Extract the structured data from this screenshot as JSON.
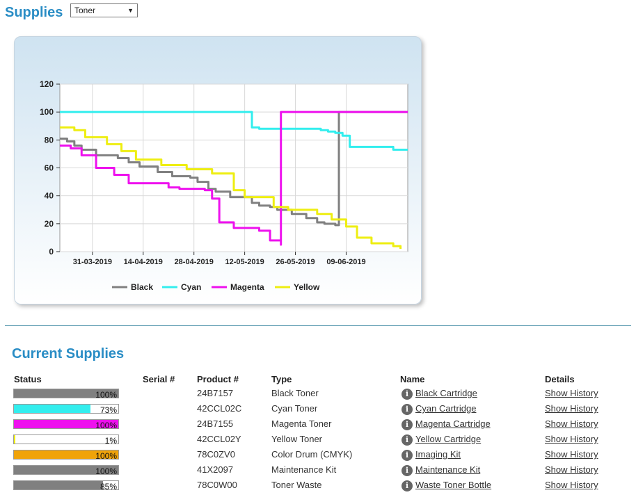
{
  "header": {
    "title": "Supplies",
    "select_value": "Toner"
  },
  "colors": {
    "accent": "#2a8dc5",
    "black": "#808080",
    "cyan": "#33eeee",
    "magenta": "#ee11ee",
    "yellow": "#eeee11",
    "orange": "#f0a30a"
  },
  "chart_data": {
    "type": "line",
    "x_ticks": [
      "31-03-2019",
      "14-04-2019",
      "28-04-2019",
      "12-05-2019",
      "26-05-2019",
      "09-06-2019"
    ],
    "xlim": [
      "2019-03-22",
      "2019-06-26"
    ],
    "ylim": [
      0,
      120
    ],
    "y_ticks": [
      "0",
      "20",
      "40",
      "60",
      "80",
      "100",
      "120"
    ],
    "grid": true,
    "legend_placement": "bottom",
    "series": [
      {
        "name": "Black",
        "color": "#808080",
        "x": [
          "2019-03-22",
          "2019-03-24",
          "2019-03-26",
          "2019-03-28",
          "2019-04-01",
          "2019-04-07",
          "2019-04-10",
          "2019-04-13",
          "2019-04-18",
          "2019-04-22",
          "2019-04-27",
          "2019-04-29",
          "2019-05-02",
          "2019-05-04",
          "2019-05-08",
          "2019-05-11",
          "2019-05-14",
          "2019-05-16",
          "2019-05-19",
          "2019-05-21",
          "2019-05-25",
          "2019-05-29",
          "2019-06-01",
          "2019-06-03",
          "2019-06-06",
          "2019-06-07",
          "2019-06-26"
        ],
        "values": [
          81,
          79,
          76,
          73,
          69,
          67,
          64,
          61,
          57,
          54,
          53,
          50,
          45,
          43,
          39,
          39,
          35,
          33,
          32,
          30,
          27,
          24,
          21,
          20,
          19,
          100,
          100
        ]
      },
      {
        "name": "Cyan",
        "color": "#33eeee",
        "x": [
          "2019-03-22",
          "2019-05-10",
          "2019-05-14",
          "2019-05-16",
          "2019-06-02",
          "2019-06-04",
          "2019-06-06",
          "2019-06-08",
          "2019-06-10",
          "2019-06-22",
          "2019-06-26"
        ],
        "values": [
          100,
          100,
          89,
          88,
          87,
          86,
          85,
          83,
          75,
          73,
          73
        ]
      },
      {
        "name": "Magenta",
        "color": "#ee11ee",
        "x": [
          "2019-03-22",
          "2019-03-25",
          "2019-03-28",
          "2019-04-01",
          "2019-04-06",
          "2019-04-10",
          "2019-04-21",
          "2019-04-24",
          "2019-05-01",
          "2019-05-03",
          "2019-05-05",
          "2019-05-09",
          "2019-05-16",
          "2019-05-19",
          "2019-05-22",
          "2019-05-22",
          "2019-06-26"
        ],
        "values": [
          76,
          74,
          69,
          60,
          55,
          49,
          46,
          45,
          44,
          38,
          21,
          17,
          15,
          8,
          5,
          100,
          100
        ]
      },
      {
        "name": "Yellow",
        "color": "#eeee11",
        "x": [
          "2019-03-22",
          "2019-03-26",
          "2019-03-29",
          "2019-04-04",
          "2019-04-08",
          "2019-04-12",
          "2019-04-19",
          "2019-04-26",
          "2019-05-03",
          "2019-05-09",
          "2019-05-12",
          "2019-05-20",
          "2019-05-24",
          "2019-06-01",
          "2019-06-05",
          "2019-06-09",
          "2019-06-12",
          "2019-06-16",
          "2019-06-22",
          "2019-06-24"
        ],
        "values": [
          89,
          87,
          82,
          77,
          72,
          66,
          62,
          59,
          56,
          44,
          39,
          32,
          30,
          27,
          23,
          18,
          10,
          6,
          4,
          2
        ]
      }
    ]
  },
  "current": {
    "title": "Current Supplies",
    "headers": {
      "status": "Status",
      "serial": "Serial #",
      "product": "Product #",
      "type": "Type",
      "name": "Name",
      "details": "Details"
    },
    "rows": [
      {
        "pct": "100%",
        "level": 1.0,
        "color": "#808080",
        "product": "24B7157",
        "type": "Black Toner",
        "name": "Black Cartridge",
        "details": "Show History"
      },
      {
        "pct": "73%",
        "level": 0.73,
        "color": "#33eeee",
        "product": "42CCL02C",
        "type": "Cyan Toner",
        "name": "Cyan Cartridge",
        "details": "Show History"
      },
      {
        "pct": "100%",
        "level": 1.0,
        "color": "#ee11ee",
        "product": "24B7155",
        "type": "Magenta Toner",
        "name": "Magenta Cartridge",
        "details": "Show History"
      },
      {
        "pct": "1%",
        "level": 0.01,
        "color": "#eeee11",
        "product": "42CCL02Y",
        "type": "Yellow Toner",
        "name": "Yellow Cartridge",
        "details": "Show History"
      },
      {
        "pct": "100%",
        "level": 1.0,
        "color": "#f0a30a",
        "product": "78C0ZV0",
        "type": "Color Drum (CMYK)",
        "name": "Imaging Kit",
        "details": "Show History"
      },
      {
        "pct": "100%",
        "level": 1.0,
        "color": "#808080",
        "product": "41X2097",
        "type": "Maintenance Kit",
        "name": "Maintenance Kit",
        "details": "Show History"
      },
      {
        "pct": "85%",
        "level": 0.85,
        "color": "#808080",
        "product": "78C0W00",
        "type": "Toner Waste",
        "name": "Waste Toner Bottle",
        "details": "Show History"
      }
    ]
  }
}
